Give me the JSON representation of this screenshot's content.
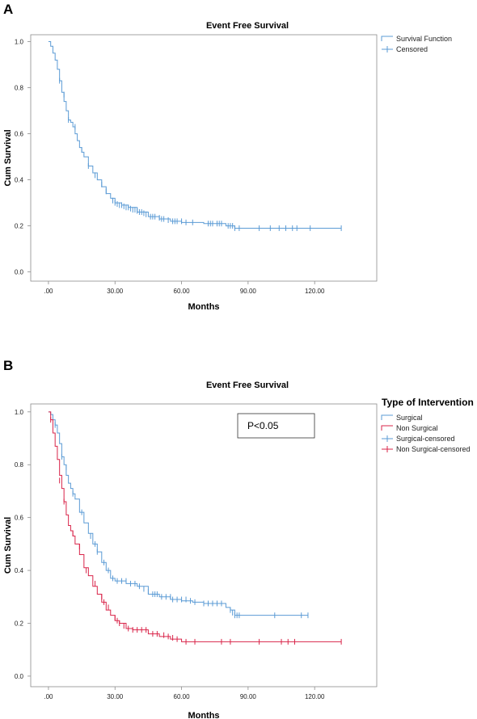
{
  "colors": {
    "surgical": "#5b9bd5",
    "non_surgical": "#d9254a",
    "axis": "#8c8c8c"
  },
  "panel_a": {
    "letter": "A"
  },
  "panel_b": {
    "letter": "B"
  },
  "chart_data": [
    {
      "type": "line",
      "step": true,
      "title": "Event Free Survival",
      "xlabel": "Months",
      "ylabel": "Cum Survival",
      "xlim": [
        -8,
        148
      ],
      "ylim": [
        -0.04,
        1.03
      ],
      "xticks": [
        0,
        30,
        60,
        90,
        120
      ],
      "xtick_labels": [
        ".00",
        "30.00",
        "60.00",
        "90.00",
        "120.00"
      ],
      "yticks": [
        0,
        0.2,
        0.4,
        0.6,
        0.8,
        1.0
      ],
      "ytick_labels": [
        "0.0",
        "0.2",
        "0.4",
        "0.6",
        "0.8",
        "1.0"
      ],
      "legend": {
        "placement": "top-right",
        "entries": [
          {
            "label": "Survival Function",
            "type": "step"
          },
          {
            "label": "Censored",
            "type": "censor"
          }
        ]
      },
      "series": [
        {
          "color": "#5b9bd5",
          "x": [
            0,
            1,
            2,
            3,
            4,
            5,
            6,
            7,
            8,
            9,
            10,
            11,
            12,
            13,
            14,
            15,
            16,
            18,
            20,
            22,
            24,
            26,
            28,
            30,
            33,
            36,
            40,
            45,
            50,
            55,
            60,
            70,
            80,
            84,
            132
          ],
          "y": [
            1.0,
            0.98,
            0.95,
            0.92,
            0.88,
            0.83,
            0.78,
            0.74,
            0.7,
            0.66,
            0.65,
            0.63,
            0.6,
            0.57,
            0.54,
            0.52,
            0.5,
            0.46,
            0.43,
            0.4,
            0.37,
            0.34,
            0.32,
            0.3,
            0.29,
            0.28,
            0.26,
            0.24,
            0.23,
            0.22,
            0.215,
            0.21,
            0.2,
            0.19,
            0.19
          ],
          "censored": [
            [
              5,
              0.83
            ],
            [
              7,
              0.77
            ],
            [
              9,
              0.66
            ],
            [
              12,
              0.63
            ],
            [
              15,
              0.53
            ],
            [
              18,
              0.46
            ],
            [
              21,
              0.42
            ],
            [
              24,
              0.38
            ],
            [
              26,
              0.35
            ],
            [
              29,
              0.31
            ],
            [
              30,
              0.3
            ],
            [
              31,
              0.295
            ],
            [
              32,
              0.29
            ],
            [
              33,
              0.29
            ],
            [
              34,
              0.285
            ],
            [
              35,
              0.28
            ],
            [
              36,
              0.28
            ],
            [
              37,
              0.275
            ],
            [
              38,
              0.27
            ],
            [
              39,
              0.27
            ],
            [
              40,
              0.265
            ],
            [
              41,
              0.26
            ],
            [
              42,
              0.26
            ],
            [
              43,
              0.255
            ],
            [
              44,
              0.25
            ],
            [
              46,
              0.24
            ],
            [
              47,
              0.24
            ],
            [
              48,
              0.24
            ],
            [
              50,
              0.235
            ],
            [
              51,
              0.23
            ],
            [
              52,
              0.23
            ],
            [
              54,
              0.225
            ],
            [
              56,
              0.22
            ],
            [
              57,
              0.22
            ],
            [
              58,
              0.22
            ],
            [
              60,
              0.22
            ],
            [
              62,
              0.215
            ],
            [
              65,
              0.215
            ],
            [
              72,
              0.21
            ],
            [
              73,
              0.21
            ],
            [
              74,
              0.21
            ],
            [
              76,
              0.21
            ],
            [
              77,
              0.21
            ],
            [
              78,
              0.21
            ],
            [
              81,
              0.2
            ],
            [
              82,
              0.2
            ],
            [
              83,
              0.2
            ],
            [
              84,
              0.19
            ],
            [
              86,
              0.19
            ],
            [
              95,
              0.19
            ],
            [
              100,
              0.19
            ],
            [
              104,
              0.19
            ],
            [
              107,
              0.19
            ],
            [
              110,
              0.19
            ],
            [
              112,
              0.19
            ],
            [
              118,
              0.19
            ],
            [
              132,
              0.19
            ]
          ]
        }
      ]
    },
    {
      "type": "line",
      "step": true,
      "title": "Event Free Survival",
      "xlabel": "Months",
      "ylabel": "Cum Survival",
      "xlim": [
        -8,
        148
      ],
      "ylim": [
        -0.04,
        1.03
      ],
      "xticks": [
        0,
        30,
        60,
        90,
        120
      ],
      "xtick_labels": [
        ".00",
        "30.00",
        "60.00",
        "90.00",
        "120.00"
      ],
      "yticks": [
        0,
        0.2,
        0.4,
        0.6,
        0.8,
        1.0
      ],
      "ytick_labels": [
        "0.0",
        "0.2",
        "0.4",
        "0.6",
        "0.8",
        "1.0"
      ],
      "annotation": "P<0.05",
      "legend": {
        "placement": "right",
        "title": "Type of Intervention",
        "entries": [
          {
            "label": "Surgical",
            "type": "step",
            "series": 0
          },
          {
            "label": "Non Surgical",
            "type": "step",
            "series": 1
          },
          {
            "label": "Surgical-censored",
            "type": "censor",
            "series": 0
          },
          {
            "label": "Non Surgical-censored",
            "type": "censor",
            "series": 1
          }
        ]
      },
      "series": [
        {
          "name": "Surgical",
          "color": "#5b9bd5",
          "x": [
            0,
            1,
            2,
            3,
            4,
            5,
            6,
            7,
            8,
            9,
            10,
            11,
            12,
            14,
            16,
            18,
            20,
            22,
            24,
            26,
            28,
            30,
            35,
            40,
            45,
            50,
            55,
            60,
            65,
            70,
            80,
            82,
            84,
            117
          ],
          "y": [
            1.0,
            0.99,
            0.97,
            0.95,
            0.92,
            0.88,
            0.83,
            0.8,
            0.76,
            0.73,
            0.71,
            0.69,
            0.67,
            0.62,
            0.58,
            0.54,
            0.5,
            0.47,
            0.43,
            0.4,
            0.37,
            0.36,
            0.35,
            0.34,
            0.31,
            0.3,
            0.29,
            0.285,
            0.28,
            0.275,
            0.26,
            0.25,
            0.23,
            0.23
          ],
          "censored": [
            [
              3,
              0.95
            ],
            [
              6,
              0.83
            ],
            [
              8,
              0.79
            ],
            [
              11,
              0.69
            ],
            [
              15,
              0.62
            ],
            [
              19,
              0.53
            ],
            [
              21,
              0.5
            ],
            [
              22,
              0.47
            ],
            [
              25,
              0.43
            ],
            [
              27,
              0.4
            ],
            [
              29,
              0.37
            ],
            [
              31,
              0.36
            ],
            [
              33,
              0.36
            ],
            [
              35,
              0.36
            ],
            [
              37,
              0.35
            ],
            [
              39,
              0.35
            ],
            [
              41,
              0.34
            ],
            [
              43,
              0.33
            ],
            [
              45,
              0.32
            ],
            [
              47,
              0.31
            ],
            [
              48,
              0.31
            ],
            [
              49,
              0.31
            ],
            [
              51,
              0.3
            ],
            [
              53,
              0.3
            ],
            [
              55,
              0.3
            ],
            [
              56,
              0.29
            ],
            [
              58,
              0.29
            ],
            [
              60,
              0.29
            ],
            [
              62,
              0.29
            ],
            [
              64,
              0.285
            ],
            [
              66,
              0.28
            ],
            [
              70,
              0.275
            ],
            [
              72,
              0.275
            ],
            [
              74,
              0.275
            ],
            [
              76,
              0.275
            ],
            [
              78,
              0.275
            ],
            [
              82,
              0.25
            ],
            [
              83,
              0.24
            ],
            [
              84,
              0.23
            ],
            [
              85,
              0.23
            ],
            [
              86,
              0.23
            ],
            [
              102,
              0.23
            ],
            [
              114,
              0.23
            ],
            [
              117,
              0.23
            ]
          ]
        },
        {
          "name": "Non Surgical",
          "color": "#d9254a",
          "x": [
            0,
            1,
            2,
            3,
            4,
            5,
            6,
            7,
            8,
            9,
            10,
            11,
            12,
            14,
            16,
            18,
            20,
            22,
            24,
            26,
            28,
            30,
            32,
            35,
            38,
            45,
            50,
            55,
            60,
            132
          ],
          "y": [
            1.0,
            0.97,
            0.92,
            0.87,
            0.82,
            0.76,
            0.71,
            0.66,
            0.61,
            0.57,
            0.55,
            0.53,
            0.5,
            0.46,
            0.41,
            0.38,
            0.34,
            0.31,
            0.28,
            0.25,
            0.23,
            0.21,
            0.2,
            0.18,
            0.175,
            0.16,
            0.15,
            0.14,
            0.13,
            0.13
          ],
          "censored": [
            [
              1,
              0.97
            ],
            [
              5,
              0.74
            ],
            [
              7,
              0.66
            ],
            [
              11,
              0.54
            ],
            [
              14,
              0.49
            ],
            [
              17,
              0.4
            ],
            [
              21,
              0.35
            ],
            [
              24,
              0.3
            ],
            [
              25,
              0.28
            ],
            [
              27,
              0.26
            ],
            [
              30,
              0.22
            ],
            [
              31,
              0.21
            ],
            [
              32,
              0.2
            ],
            [
              34,
              0.19
            ],
            [
              36,
              0.18
            ],
            [
              38,
              0.175
            ],
            [
              40,
              0.175
            ],
            [
              42,
              0.175
            ],
            [
              44,
              0.175
            ],
            [
              47,
              0.16
            ],
            [
              49,
              0.16
            ],
            [
              52,
              0.155
            ],
            [
              54,
              0.15
            ],
            [
              56,
              0.145
            ],
            [
              58,
              0.14
            ],
            [
              62,
              0.13
            ],
            [
              66,
              0.13
            ],
            [
              78,
              0.13
            ],
            [
              82,
              0.13
            ],
            [
              95,
              0.13
            ],
            [
              105,
              0.13
            ],
            [
              108,
              0.13
            ],
            [
              111,
              0.13
            ],
            [
              132,
              0.13
            ]
          ]
        }
      ]
    }
  ]
}
